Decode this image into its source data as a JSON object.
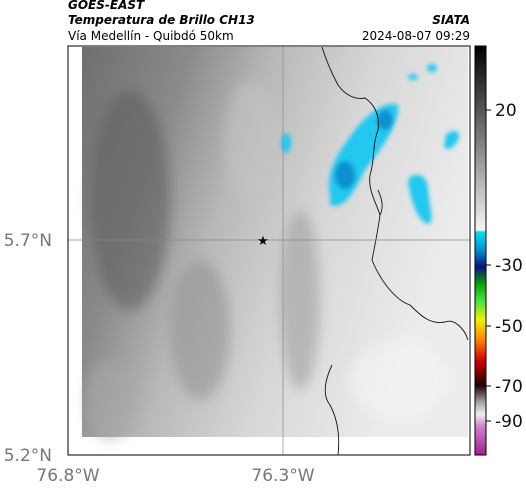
{
  "header": {
    "source": "GOES-EAST",
    "title": "Temperatura de Brillo CH13",
    "subtitle": "Vía Medellín - Quibdó 50km",
    "agency": "SIATA",
    "timestamp": "2024-08-07 09:29"
  },
  "map": {
    "lat_labels": [
      "5.7°N",
      "5.2°N"
    ],
    "lon_labels": [
      "76.8°W",
      "76.3°W"
    ]
  },
  "colorbar": {
    "tick_labels": [
      "20",
      "-30",
      "-50",
      "-70",
      "-90"
    ]
  }
}
